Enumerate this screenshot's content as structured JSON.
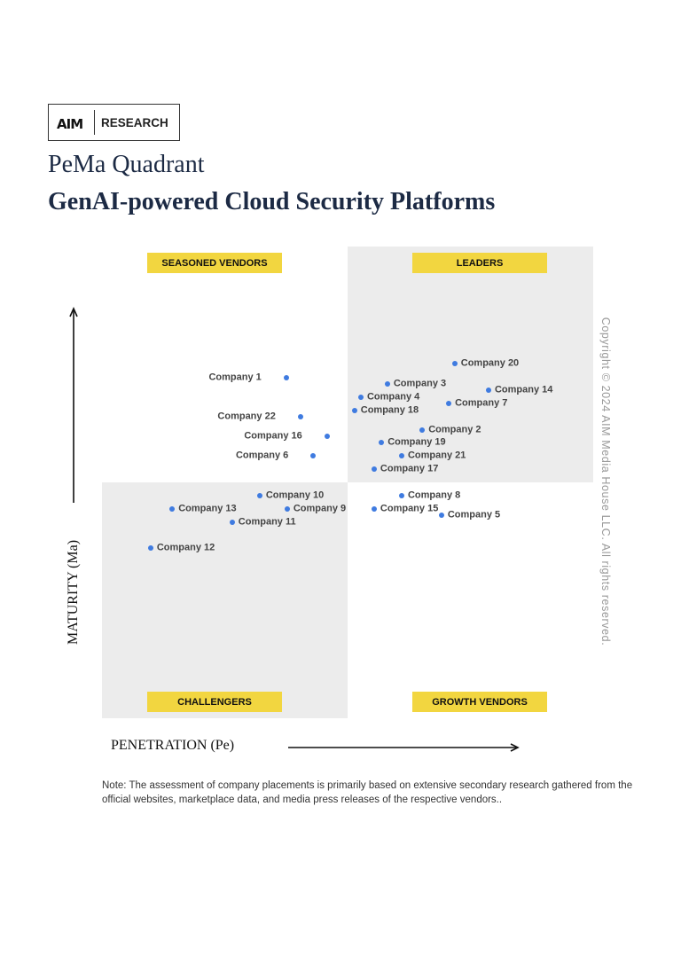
{
  "logo": {
    "mark": "AIM",
    "text": "RESEARCH"
  },
  "header": {
    "title": "PeMa Quadrant",
    "subtitle": "GenAI-powered Cloud Security Platforms"
  },
  "copyright": "Copyright © 2024 AIM Media House LLC. All rights reserved.",
  "note": "Note: The assessment of company placements is primarily based on extensive secondary research gathered from the official websites, marketplace data, and media press releases of the respective vendors..",
  "colors": {
    "dot": "#3f7be0",
    "quadrant_shade": "#ececec",
    "quadrant_label": "#f2d640",
    "title": "#1c2a44"
  },
  "chart_data": {
    "type": "scatter",
    "xlabel": "PENETRATION (Pe)",
    "ylabel": "MATURITY (Ma)",
    "xlim": [
      0,
      10
    ],
    "ylim": [
      0,
      10
    ],
    "grid": false,
    "quadrants": {
      "top_left": "SEASONED VENDORS",
      "top_right": "LEADERS",
      "bottom_left": "CHALLENGERS",
      "bottom_right": "GROWTH VENDORS"
    },
    "points": [
      {
        "name": "Company 1",
        "x": 3.75,
        "y": 7.22,
        "label_side": "left"
      },
      {
        "name": "Company 20",
        "x": 7.18,
        "y": 7.52,
        "label_side": "right"
      },
      {
        "name": "Company 3",
        "x": 5.81,
        "y": 7.09,
        "label_side": "right"
      },
      {
        "name": "Company 14",
        "x": 7.87,
        "y": 6.95,
        "label_side": "right"
      },
      {
        "name": "Company 4",
        "x": 5.27,
        "y": 6.8,
        "label_side": "right"
      },
      {
        "name": "Company 7",
        "x": 7.06,
        "y": 6.67,
        "label_side": "right"
      },
      {
        "name": "Company 18",
        "x": 5.14,
        "y": 6.52,
        "label_side": "right"
      },
      {
        "name": "Company 22",
        "x": 4.04,
        "y": 6.39,
        "label_side": "left"
      },
      {
        "name": "Company 2",
        "x": 6.52,
        "y": 6.11,
        "label_side": "right"
      },
      {
        "name": "Company 16",
        "x": 4.58,
        "y": 5.98,
        "label_side": "left"
      },
      {
        "name": "Company 19",
        "x": 5.69,
        "y": 5.85,
        "label_side": "right"
      },
      {
        "name": "Company 21",
        "x": 6.1,
        "y": 5.56,
        "label_side": "right"
      },
      {
        "name": "Company 6",
        "x": 4.3,
        "y": 5.56,
        "label_side": "left"
      },
      {
        "name": "Company 17",
        "x": 5.54,
        "y": 5.28,
        "label_side": "right"
      },
      {
        "name": "Company 10",
        "x": 3.21,
        "y": 4.72,
        "label_side": "right"
      },
      {
        "name": "Company 8",
        "x": 6.1,
        "y": 4.72,
        "label_side": "right"
      },
      {
        "name": "Company 13",
        "x": 1.43,
        "y": 4.44,
        "label_side": "right"
      },
      {
        "name": "Company 9",
        "x": 3.77,
        "y": 4.44,
        "label_side": "right"
      },
      {
        "name": "Company 15",
        "x": 5.54,
        "y": 4.44,
        "label_side": "right"
      },
      {
        "name": "Company 5",
        "x": 6.91,
        "y": 4.3,
        "label_side": "right"
      },
      {
        "name": "Company 11",
        "x": 2.65,
        "y": 4.15,
        "label_side": "right"
      },
      {
        "name": "Company 12",
        "x": 0.99,
        "y": 3.61,
        "label_side": "right"
      }
    ]
  }
}
